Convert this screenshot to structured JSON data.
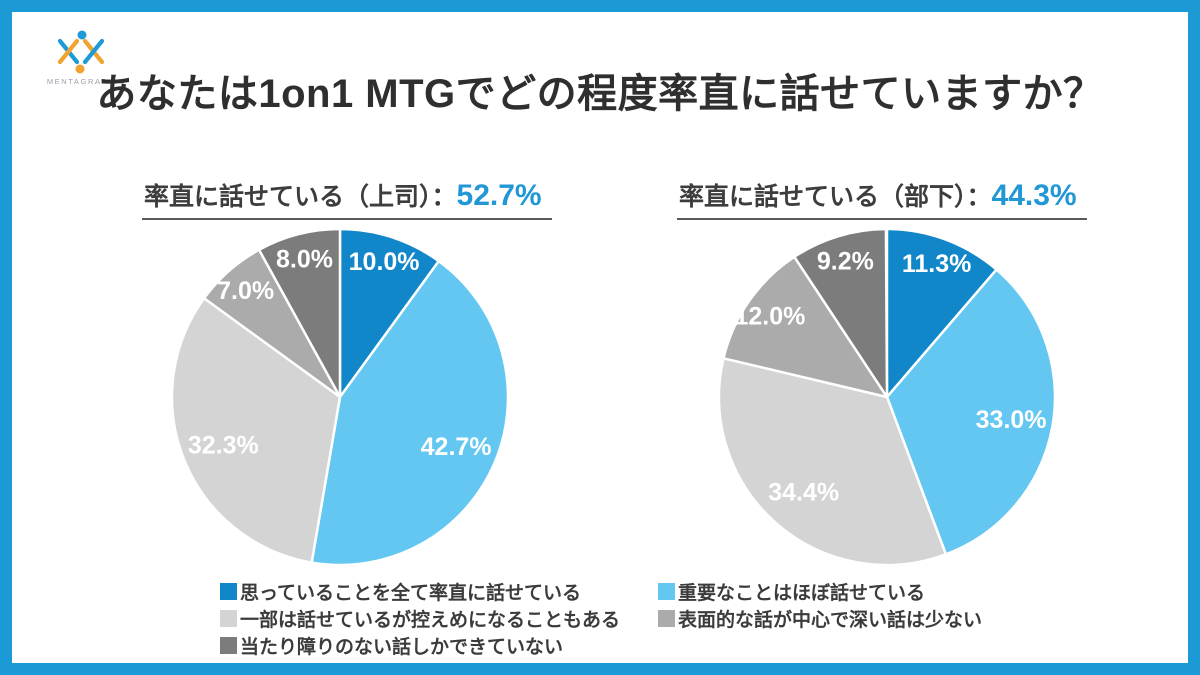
{
  "logo": {
    "brand": "MENTAGRAPH"
  },
  "title": "あなたは1on1 MTGでどの程度率直に話せていますか？",
  "colors": {
    "frame_blue": "#1b9ad6",
    "heading_value_blue": "#2297d6",
    "slice_dark_blue": "#1186c8",
    "slice_light_blue": "#63c7f1",
    "slice_light_gray": "#d4d4d4",
    "slice_mid_gray": "#ababab",
    "slice_dark_gray": "#7c7c7c",
    "label_white": "#ffffff"
  },
  "chart_data": [
    {
      "type": "pie",
      "heading": "率直に話せている（上司）：",
      "heading_value": "52.7%",
      "categories": [
        "思っていることを全て率直に話せている",
        "重要なことはほぼ話せている",
        "一部は話せているが控えめになることもある",
        "表面的な話が中心で深い話は少ない",
        "当たり障りのない話しかできていない"
      ],
      "values": [
        10.0,
        42.7,
        32.3,
        7.0,
        8.0
      ],
      "data_labels": [
        "10.0%",
        "42.7%",
        "32.3%",
        "7.0%",
        "8.0%"
      ],
      "slice_colors": [
        "#1186c8",
        "#63c7f1",
        "#d4d4d4",
        "#ababab",
        "#7c7c7c"
      ],
      "start_angle_deg": 0,
      "direction": "clockwise",
      "slice_border_color": "#ffffff",
      "legend_position": "bottom"
    },
    {
      "type": "pie",
      "heading": "率直に話せている（部下）：",
      "heading_value": "44.3%",
      "categories": [
        "思っていることを全て率直に話せている",
        "重要なことはほぼ話せている",
        "一部は話せているが控えめになることもある",
        "表面的な話が中心で深い話は少ない",
        "当たり障りのない話しかできていない"
      ],
      "values": [
        11.3,
        33.0,
        34.4,
        12.0,
        9.2
      ],
      "data_labels": [
        "11.3%",
        "33.0%",
        "34.4%",
        "12.0%",
        "9.2%"
      ],
      "slice_colors": [
        "#1186c8",
        "#63c7f1",
        "#d4d4d4",
        "#ababab",
        "#7c7c7c"
      ],
      "start_angle_deg": 0,
      "direction": "clockwise",
      "slice_border_color": "#ffffff",
      "legend_position": "bottom"
    }
  ],
  "legend": {
    "columns": [
      {
        "items": [
          {
            "label": "思っていることを全て率直に話せている",
            "color": "#1186c8"
          },
          {
            "label": "一部は話せているが控えめになることもある",
            "color": "#d4d4d4"
          },
          {
            "label": "当たり障りのない話しかできていない",
            "color": "#7c7c7c"
          }
        ]
      },
      {
        "items": [
          {
            "label": "重要なことはほぼ話せている",
            "color": "#63c7f1"
          },
          {
            "label": "表面的な話が中心で深い話は少ない",
            "color": "#ababab"
          }
        ]
      }
    ]
  }
}
